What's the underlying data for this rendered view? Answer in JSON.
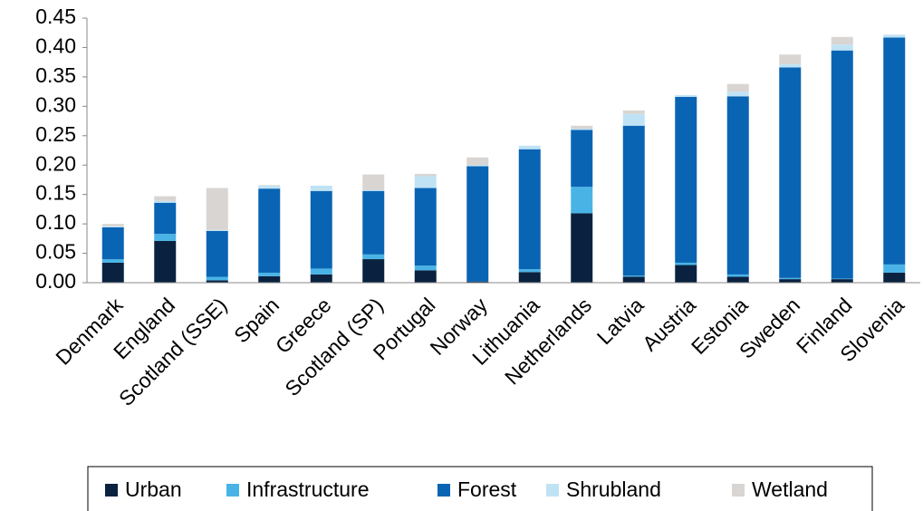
{
  "chart_data": {
    "type": "stacked-bar",
    "categories": [
      "Denmark",
      "England",
      "Scotland (SSE)",
      "Spain",
      "Greece",
      "Scotland (SP)",
      "Portugal",
      "Norway",
      "Lithuania",
      "Netherlands",
      "Latvia",
      "Austria",
      "Estonia",
      "Sweden",
      "Finland",
      "Slovenia"
    ],
    "series": [
      {
        "name": "Urban",
        "color": "#0a2240",
        "values": [
          0.034,
          0.071,
          0.004,
          0.011,
          0.014,
          0.04,
          0.021,
          0.002,
          0.018,
          0.118,
          0.01,
          0.03,
          0.01,
          0.006,
          0.006,
          0.017
        ]
      },
      {
        "name": "Infrastructure",
        "color": "#4ab3e6",
        "values": [
          0.006,
          0.012,
          0.006,
          0.006,
          0.01,
          0.008,
          0.008,
          0,
          0.005,
          0.045,
          0.002,
          0.004,
          0.004,
          0.002,
          0.001,
          0.014
        ]
      },
      {
        "name": "Forest",
        "color": "#0a64b4",
        "values": [
          0.054,
          0.053,
          0.078,
          0.143,
          0.132,
          0.108,
          0.132,
          0.196,
          0.204,
          0.097,
          0.255,
          0.282,
          0.303,
          0.358,
          0.388,
          0.386
        ]
      },
      {
        "name": "Shrubland",
        "color": "#bfe3f5",
        "values": [
          0.002,
          0.003,
          0.002,
          0.005,
          0.009,
          0.002,
          0.02,
          0.002,
          0.006,
          0.002,
          0.02,
          0.003,
          0.008,
          0.006,
          0.01,
          0.005
        ]
      },
      {
        "name": "Wetland",
        "color": "#d9d5d2",
        "values": [
          0.004,
          0.008,
          0.071,
          0.001,
          0,
          0.026,
          0.004,
          0.013,
          0,
          0.005,
          0.006,
          0,
          0.013,
          0.016,
          0.013,
          0
        ]
      }
    ],
    "ylim": [
      0,
      0.45
    ],
    "yticks": [
      {
        "value": 0,
        "label": "0.00"
      },
      0.05,
      {
        "value": 0.1,
        "label": "0.10"
      },
      0.15,
      {
        "value": 0.2,
        "label": "0.20"
      },
      0.25,
      {
        "value": 0.3,
        "label": "0.30"
      },
      0.35,
      {
        "value": 0.4,
        "label": "0.40"
      },
      0.45
    ]
  }
}
